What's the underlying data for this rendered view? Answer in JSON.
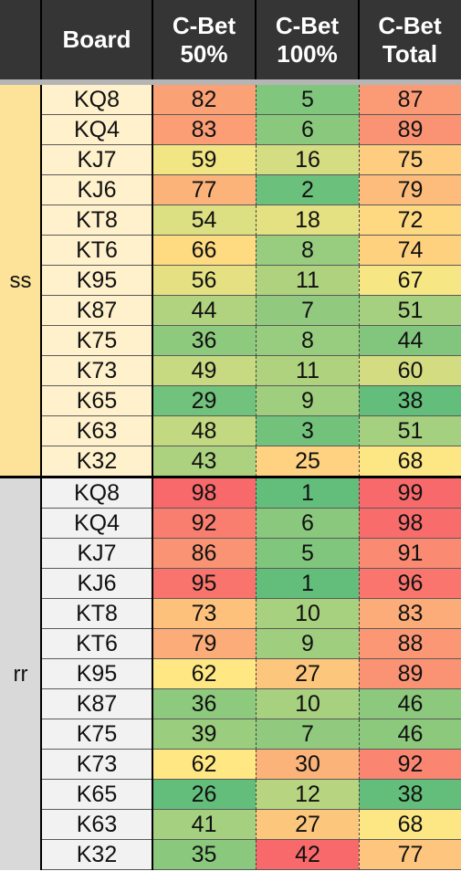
{
  "header": {
    "group": "",
    "board": "Board",
    "cbet50": [
      "C-Bet",
      "50%"
    ],
    "cbet100": [
      "C-Bet",
      "100%"
    ],
    "cbetTotal": [
      "C-Bet",
      "Total"
    ]
  },
  "groups": [
    {
      "label": "ss",
      "bg": "#fde39a",
      "board_bg": "#fff1cc",
      "rows": [
        {
          "board": "KQ8",
          "c50": 82,
          "c100": 5,
          "total": 87
        },
        {
          "board": "KQ4",
          "c50": 83,
          "c100": 6,
          "total": 89
        },
        {
          "board": "KJ7",
          "c50": 59,
          "c100": 16,
          "total": 75
        },
        {
          "board": "KJ6",
          "c50": 77,
          "c100": 2,
          "total": 79
        },
        {
          "board": "KT8",
          "c50": 54,
          "c100": 18,
          "total": 72
        },
        {
          "board": "KT6",
          "c50": 66,
          "c100": 8,
          "total": 74
        },
        {
          "board": "K95",
          "c50": 56,
          "c100": 11,
          "total": 67
        },
        {
          "board": "K87",
          "c50": 44,
          "c100": 7,
          "total": 51
        },
        {
          "board": "K75",
          "c50": 36,
          "c100": 8,
          "total": 44
        },
        {
          "board": "K73",
          "c50": 49,
          "c100": 11,
          "total": 60
        },
        {
          "board": "K65",
          "c50": 29,
          "c100": 9,
          "total": 38
        },
        {
          "board": "K63",
          "c50": 48,
          "c100": 3,
          "total": 51
        },
        {
          "board": "K32",
          "c50": 43,
          "c100": 25,
          "total": 68
        }
      ]
    },
    {
      "label": "rr",
      "bg": "#d9d9d9",
      "board_bg": "#f2f2f2",
      "rows": [
        {
          "board": "KQ8",
          "c50": 98,
          "c100": 1,
          "total": 99
        },
        {
          "board": "KQ4",
          "c50": 92,
          "c100": 6,
          "total": 98
        },
        {
          "board": "KJ7",
          "c50": 86,
          "c100": 5,
          "total": 91
        },
        {
          "board": "KJ6",
          "c50": 95,
          "c100": 1,
          "total": 96
        },
        {
          "board": "KT8",
          "c50": 73,
          "c100": 10,
          "total": 83
        },
        {
          "board": "KT6",
          "c50": 79,
          "c100": 9,
          "total": 88
        },
        {
          "board": "K95",
          "c50": 62,
          "c100": 27,
          "total": 89
        },
        {
          "board": "K87",
          "c50": 36,
          "c100": 10,
          "total": 46
        },
        {
          "board": "K75",
          "c50": 39,
          "c100": 7,
          "total": 46
        },
        {
          "board": "K73",
          "c50": 62,
          "c100": 30,
          "total": 92
        },
        {
          "board": "K65",
          "c50": 26,
          "c100": 12,
          "total": 38
        },
        {
          "board": "K63",
          "c50": 41,
          "c100": 27,
          "total": 68
        },
        {
          "board": "K32",
          "c50": 35,
          "c100": 42,
          "total": 77
        }
      ]
    }
  ],
  "colors": {
    "header_bg": "#353535",
    "header_text": "#ffffff",
    "scale_low": "#63be7b",
    "scale_mid": "#ffe884",
    "scale_high": "#f8696b"
  }
}
